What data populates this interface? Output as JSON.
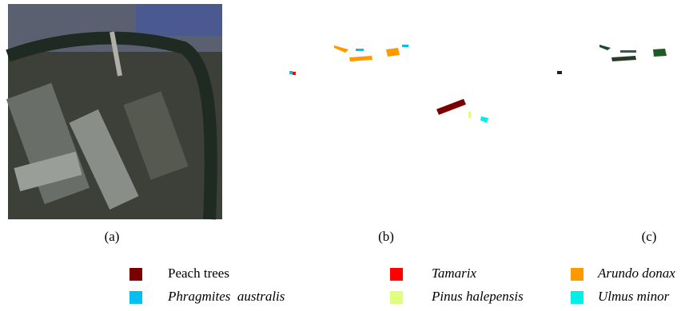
{
  "panels": [
    {
      "label": "(a)"
    },
    {
      "label": "(b)"
    },
    {
      "label": "(c)"
    }
  ],
  "legend": [
    {
      "name": "Peach trees",
      "color": "#7a0000",
      "italic": false
    },
    {
      "name": "Tamarix",
      "color": "#ff0000",
      "italic": true
    },
    {
      "name": "Arundo donax",
      "color": "#ff9900",
      "italic": true
    },
    {
      "name": "Phragmites  australis",
      "color": "#00c0f0",
      "italic": true
    },
    {
      "name": "Pinus halepensis",
      "color": "#e0ff80",
      "italic": true
    },
    {
      "name": "Ulmus minor",
      "color": "#00f0e8",
      "italic": true
    }
  ]
}
